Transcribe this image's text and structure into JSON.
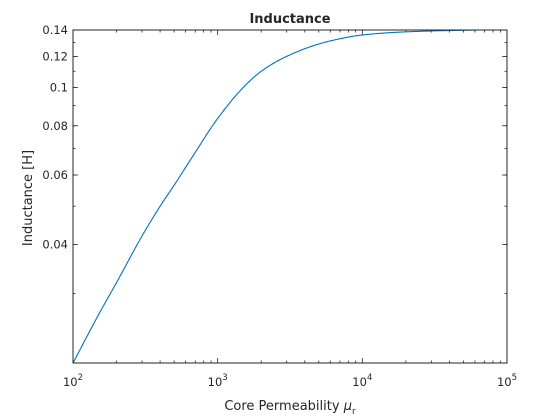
{
  "chart_data": {
    "type": "line",
    "title": "Inductance",
    "xlabel": {
      "text": "Core Permeability ",
      "symbol": "μ",
      "subscript": "r"
    },
    "ylabel": "Inductance [H]",
    "xscale": "log",
    "yscale": "log",
    "xlim": [
      100,
      100000
    ],
    "ylim": [
      0.02,
      0.14
    ],
    "grid": false,
    "box": true,
    "x_ticks": [
      {
        "value": 100,
        "base": "10",
        "exp": "2"
      },
      {
        "value": 1000,
        "base": "10",
        "exp": "3"
      },
      {
        "value": 10000,
        "base": "10",
        "exp": "4"
      },
      {
        "value": 100000,
        "base": "10",
        "exp": "5"
      }
    ],
    "y_ticks": [
      {
        "value": 0.04,
        "label": "0.04"
      },
      {
        "value": 0.06,
        "label": "0.06"
      },
      {
        "value": 0.08,
        "label": "0.08"
      },
      {
        "value": 0.1,
        "label": "0.1"
      },
      {
        "value": 0.12,
        "label": "0.12"
      },
      {
        "value": 0.14,
        "label": "0.14"
      }
    ],
    "series": [
      {
        "color": "#0072BD",
        "x": [
          100,
          150,
          200,
          300,
          400,
          500,
          700,
          1000,
          1500,
          2000,
          3000,
          5000,
          7000,
          10000,
          20000,
          50000,
          100000
        ],
        "y": [
          0.02,
          0.0265,
          0.032,
          0.042,
          0.05,
          0.0565,
          0.0685,
          0.0835,
          0.1,
          0.11,
          0.12,
          0.129,
          0.133,
          0.136,
          0.1385,
          0.1398,
          0.1403
        ]
      }
    ]
  }
}
